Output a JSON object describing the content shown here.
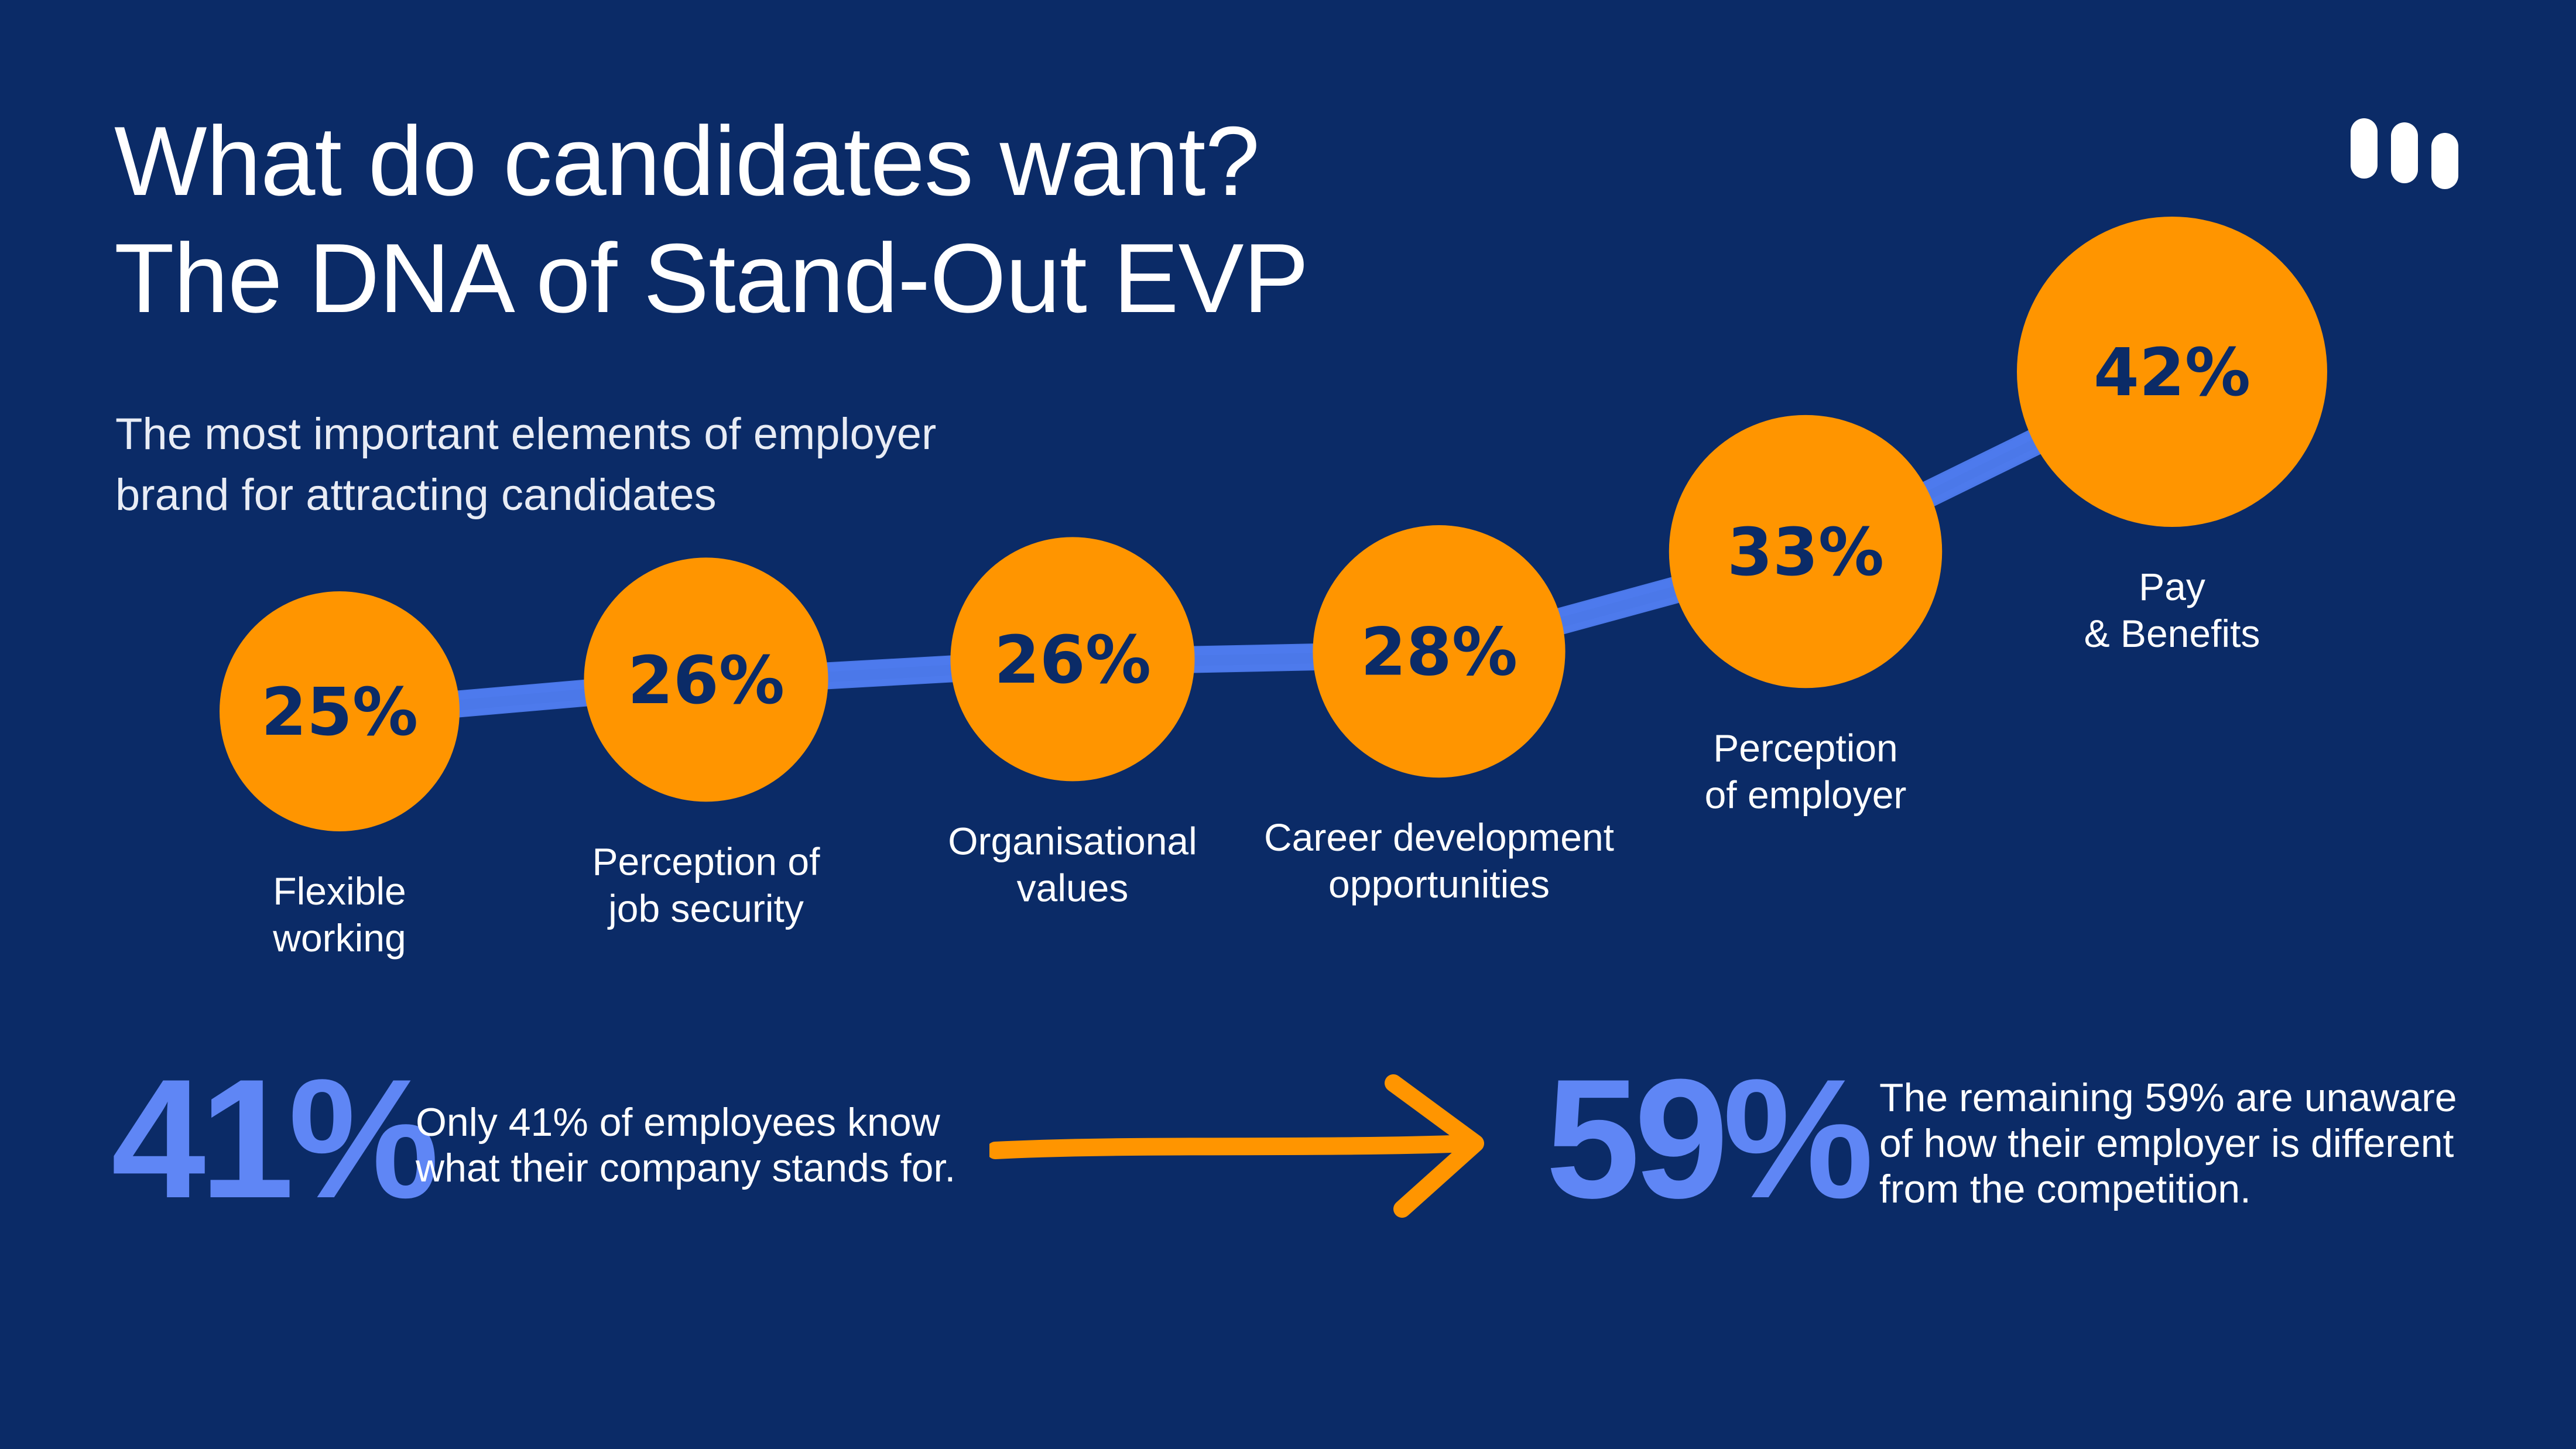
{
  "title": {
    "line1": "What do candidates want?",
    "line2": "The DNA of Stand-Out EVP"
  },
  "subtitle": {
    "line1": "The most important elements of employer",
    "line2": "brand for attracting candidates"
  },
  "logo": {
    "icon": "company-logo-icon",
    "color": "#ffffff"
  },
  "chart_data": {
    "type": "bubble-line",
    "title": "The most important elements of employer brand for attracting candidates",
    "unit": "%",
    "categories": [
      [
        "Flexible",
        "working"
      ],
      [
        "Perception of",
        "job security"
      ],
      [
        "Organisational",
        "values"
      ],
      [
        "Career development",
        "opportunities"
      ],
      [
        "Perception",
        "of employer"
      ],
      [
        "Pay",
        "& Benefits"
      ]
    ],
    "values": [
      25,
      26,
      26,
      28,
      33,
      42
    ],
    "labels": [
      "25%",
      "26%",
      "26%",
      "28%",
      "33%",
      "42%"
    ],
    "bubble_color": "#ff9500",
    "line_color": "#4f7cf0",
    "label_color": "#0b2b67"
  },
  "stats": [
    {
      "value": "41%",
      "text_lines": [
        "Only 41% of employees know",
        "what their company stands for."
      ]
    },
    {
      "value": "59%",
      "text_lines": [
        "The remaining 59% are unaware",
        "of how their employer is different",
        "from the competition."
      ]
    }
  ],
  "arrow": {
    "icon": "arrow-right-icon",
    "color": "#ff9500"
  },
  "colors": {
    "background": "#0b2b67",
    "accent_orange": "#ff9500",
    "accent_blue": "#5f86f5",
    "text": "#ffffff"
  }
}
